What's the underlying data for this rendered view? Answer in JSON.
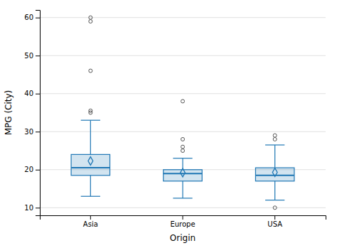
{
  "chart_data": {
    "type": "box",
    "xlabel": "Origin",
    "ylabel": "MPG (City)",
    "categories": [
      "Asia",
      "Europe",
      "USA"
    ],
    "boxes": [
      {
        "q1": 18.5,
        "median": 20.5,
        "q3": 24.0,
        "whislo": 13.0,
        "whishi": 33.0,
        "mean": 22.3,
        "fliers": [
          35.0,
          35.5,
          46.0,
          59.0,
          60.0
        ]
      },
      {
        "q1": 17.0,
        "median": 19.0,
        "q3": 20.0,
        "whislo": 12.5,
        "whishi": 23.0,
        "mean": 19.2,
        "fliers": [
          25.0,
          26.0,
          28.0,
          38.0
        ]
      },
      {
        "q1": 17.0,
        "median": 18.5,
        "q3": 20.5,
        "whislo": 12.0,
        "whishi": 26.5,
        "mean": 19.3,
        "fliers": [
          28.0,
          29.0,
          10.0
        ]
      }
    ],
    "ylim": [
      8,
      62
    ],
    "yticks": [
      10,
      20,
      30,
      40,
      50,
      60
    ],
    "grid": true
  }
}
